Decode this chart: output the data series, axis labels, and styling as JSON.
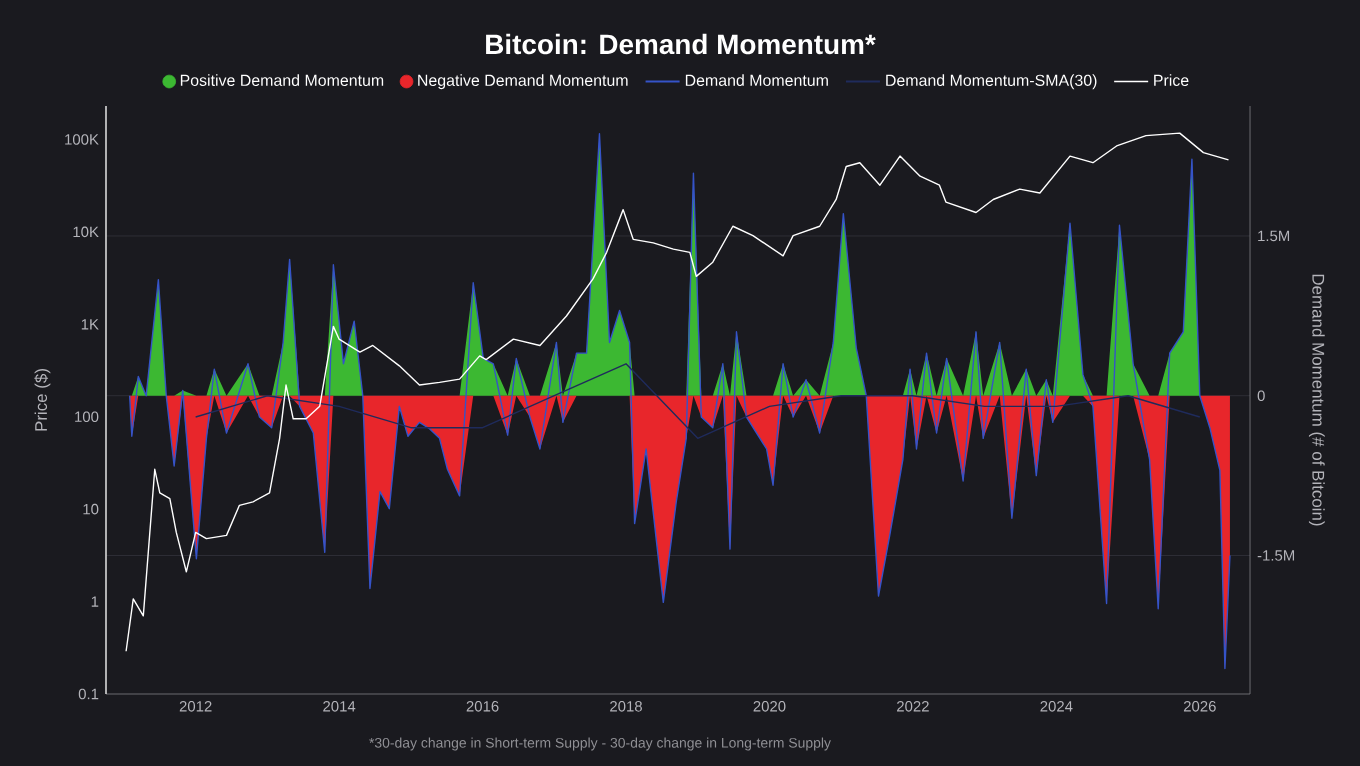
{
  "chart_data": {
    "type": "area",
    "title": "Bitcoin: Demand Momentum*",
    "xlim": [
      2010.75,
      2026.7
    ],
    "xticks": [
      2012,
      2014,
      2016,
      2018,
      2020,
      2022,
      2024,
      2026
    ],
    "ylabel": "Price ($)",
    "y2label": "Demand Momentum (# of Bitcoin)",
    "ylim": [
      0.1,
      230000
    ],
    "yticks": [
      0.1,
      1,
      10,
      100,
      {
        "value": 1000,
        "label": "1K"
      },
      {
        "value": 10000,
        "label": "10K"
      },
      {
        "value": 100000,
        "label": "100K"
      }
    ],
    "log": "y",
    "y2lim": [
      -2800000,
      2720000
    ],
    "y2ticks": [
      {
        "value": -1500000,
        "label": "-1.5M"
      },
      0,
      {
        "value": 1500000,
        "label": "1.5M"
      }
    ],
    "grid": "y",
    "legend": "top",
    "annotations": [
      "*30-day change in Short-term Supply - 30-day change in Long-term Supply"
    ],
    "x": [
      2011.08,
      2011.11,
      2011.2,
      2011.31,
      2011.48,
      2011.59,
      2011.7,
      2011.82,
      2012.01,
      2012.15,
      2012.26,
      2012.43,
      2012.73,
      2012.89,
      2013.06,
      2013.22,
      2013.31,
      2013.45,
      2013.64,
      2013.8,
      2013.92,
      2014.06,
      2014.21,
      2014.33,
      2014.43,
      2014.57,
      2014.7,
      2014.84,
      2014.96,
      2015.12,
      2015.26,
      2015.4,
      2015.51,
      2015.68,
      2015.87,
      2016.01,
      2016.15,
      2016.35,
      2016.47,
      2016.66,
      2016.8,
      2017.03,
      2017.12,
      2017.31,
      2017.45,
      2017.63,
      2017.77,
      2017.91,
      2018.05,
      2018.12,
      2018.28,
      2018.52,
      2018.7,
      2018.84,
      2018.94,
      2019.05,
      2019.21,
      2019.35,
      2019.45,
      2019.54,
      2019.68,
      2019.96,
      2020.05,
      2020.19,
      2020.33,
      2020.51,
      2020.7,
      2020.89,
      2021.03,
      2021.21,
      2021.35,
      2021.52,
      2021.68,
      2021.86,
      2021.96,
      2022.05,
      2022.19,
      2022.33,
      2022.47,
      2022.7,
      2022.88,
      2022.98,
      2023.21,
      2023.38,
      2023.58,
      2023.72,
      2023.86,
      2023.95,
      2024.19,
      2024.37,
      2024.51,
      2024.7,
      2024.88,
      2025.07,
      2025.3,
      2025.42,
      2025.58,
      2025.77,
      2025.89,
      2026.0,
      2026.14,
      2026.28,
      2026.35,
      2026.42
    ],
    "series": [
      {
        "name": "Positive Demand Momentum",
        "axis": "y2",
        "color": "#3cb832",
        "values": [
          0,
          0,
          180000,
          0,
          1090000,
          0,
          0,
          50000,
          0,
          0,
          250000,
          0,
          300000,
          0,
          0,
          500000,
          1280000,
          0,
          0,
          0,
          1230000,
          300000,
          700000,
          0,
          0,
          0,
          0,
          0,
          0,
          0,
          0,
          0,
          0,
          0,
          1060000,
          350000,
          300000,
          0,
          350000,
          0,
          0,
          500000,
          0,
          400000,
          400000,
          2460000,
          500000,
          800000,
          500000,
          0,
          0,
          0,
          0,
          0,
          2090000,
          0,
          0,
          300000,
          0,
          600000,
          0,
          0,
          0,
          300000,
          0,
          150000,
          0,
          500000,
          1710000,
          450000,
          0,
          0,
          0,
          0,
          250000,
          0,
          400000,
          0,
          350000,
          0,
          600000,
          0,
          500000,
          0,
          250000,
          0,
          150000,
          0,
          1620000,
          200000,
          0,
          0,
          1600000,
          300000,
          0,
          0,
          400000,
          600000,
          2220000,
          0,
          0,
          0,
          0,
          0
        ]
      },
      {
        "name": "Negative Demand Momentum",
        "axis": "y2",
        "color": "#e8262b",
        "values": [
          0,
          -380000,
          0,
          0,
          0,
          0,
          -660000,
          0,
          -1530000,
          -400000,
          0,
          -350000,
          0,
          -200000,
          -300000,
          0,
          0,
          -100000,
          -350000,
          -1470000,
          0,
          0,
          0,
          0,
          -1810000,
          -900000,
          -1060000,
          -100000,
          -380000,
          -250000,
          -310000,
          -400000,
          -690000,
          -940000,
          0,
          0,
          0,
          -370000,
          0,
          -200000,
          -500000,
          0,
          -250000,
          0,
          0,
          0,
          0,
          0,
          0,
          -1200000,
          -500000,
          -1940000,
          -1000000,
          -400000,
          0,
          -200000,
          -300000,
          0,
          -1440000,
          0,
          -200000,
          -500000,
          -840000,
          0,
          -200000,
          0,
          -350000,
          0,
          0,
          0,
          0,
          -1880000,
          -1300000,
          -600000,
          0,
          -500000,
          0,
          -350000,
          0,
          -800000,
          0,
          -400000,
          0,
          -1150000,
          0,
          -750000,
          0,
          -250000,
          0,
          0,
          -100000,
          -1950000,
          0,
          0,
          -600000,
          -2000000,
          0,
          0,
          0,
          0,
          -300000,
          -700000,
          -2560000,
          -1500000
        ]
      },
      {
        "name": "Demand Momentum",
        "type": "line",
        "axis": "y2",
        "color": "#3553c8",
        "values": [
          0,
          -380000,
          180000,
          0,
          1090000,
          0,
          -660000,
          50000,
          -1530000,
          -400000,
          250000,
          -350000,
          300000,
          -200000,
          -300000,
          500000,
          1280000,
          -100000,
          -350000,
          -1470000,
          1230000,
          300000,
          700000,
          0,
          -1810000,
          -900000,
          -1060000,
          -100000,
          -380000,
          -250000,
          -310000,
          -400000,
          -690000,
          -940000,
          1060000,
          350000,
          300000,
          -370000,
          350000,
          -200000,
          -500000,
          500000,
          -250000,
          400000,
          400000,
          2460000,
          500000,
          800000,
          500000,
          -1200000,
          -500000,
          -1940000,
          -1000000,
          -400000,
          2090000,
          -200000,
          -300000,
          300000,
          -1440000,
          600000,
          -200000,
          -500000,
          -840000,
          300000,
          -200000,
          150000,
          -350000,
          500000,
          1710000,
          450000,
          0,
          -1880000,
          -1300000,
          -600000,
          250000,
          -500000,
          400000,
          -350000,
          350000,
          -800000,
          600000,
          -400000,
          500000,
          -1150000,
          250000,
          -750000,
          150000,
          -250000,
          1620000,
          200000,
          -100000,
          -1950000,
          1600000,
          300000,
          -600000,
          -2000000,
          400000,
          600000,
          2220000,
          0,
          -300000,
          -700000,
          -2560000,
          -1500000
        ]
      },
      {
        "name": "Demand Momentum-SMA(30)",
        "type": "line",
        "axis": "y2",
        "color": "#1f2b5c",
        "x": [
          2012,
          2013,
          2014,
          2015,
          2016,
          2017,
          2018,
          2019,
          2020,
          2021,
          2022,
          2023,
          2024,
          2025,
          2026
        ],
        "values": [
          -200000,
          0,
          -100000,
          -300000,
          -300000,
          0,
          300000,
          -400000,
          -100000,
          0,
          0,
          -100000,
          -100000,
          0,
          -200000
        ]
      },
      {
        "name": "Price",
        "type": "line",
        "color": "#ffffff",
        "x": [
          2011.03,
          2011.13,
          2011.27,
          2011.43,
          2011.5,
          2011.64,
          2011.73,
          2011.87,
          2012.0,
          2012.15,
          2012.43,
          2012.61,
          2012.8,
          2013.03,
          2013.17,
          2013.26,
          2013.36,
          2013.54,
          2013.73,
          2013.92,
          2014.0,
          2014.29,
          2014.47,
          2014.84,
          2015.12,
          2015.4,
          2015.68,
          2015.96,
          2016.05,
          2016.43,
          2016.8,
          2017.17,
          2017.54,
          2017.73,
          2017.96,
          2018.1,
          2018.38,
          2018.66,
          2018.89,
          2018.98,
          2019.21,
          2019.49,
          2019.77,
          2020.19,
          2020.33,
          2020.7,
          2020.93,
          2021.07,
          2021.26,
          2021.54,
          2021.82,
          2022.1,
          2022.37,
          2022.46,
          2022.88,
          2023.12,
          2023.49,
          2023.77,
          2024.19,
          2024.51,
          2024.84,
          2025.25,
          2025.72,
          2026.05,
          2026.4
        ],
        "values": [
          0.29,
          1.07,
          0.7,
          27,
          15,
          13,
          5.6,
          2.1,
          5.6,
          4.8,
          5.2,
          11,
          12,
          15,
          58,
          220,
          95,
          95,
          130,
          950,
          690,
          500,
          590,
          355,
          220,
          235,
          255,
          455,
          415,
          690,
          590,
          1230,
          3100,
          6000,
          17400,
          8300,
          7600,
          6500,
          6000,
          3300,
          4700,
          11500,
          9100,
          5500,
          9100,
          11500,
          22400,
          51000,
          56000,
          32000,
          66000,
          40000,
          32000,
          21000,
          16200,
          22400,
          29000,
          26300,
          66000,
          56000,
          85000,
          110000,
          117000,
          72000,
          60000
        ]
      }
    ]
  }
}
